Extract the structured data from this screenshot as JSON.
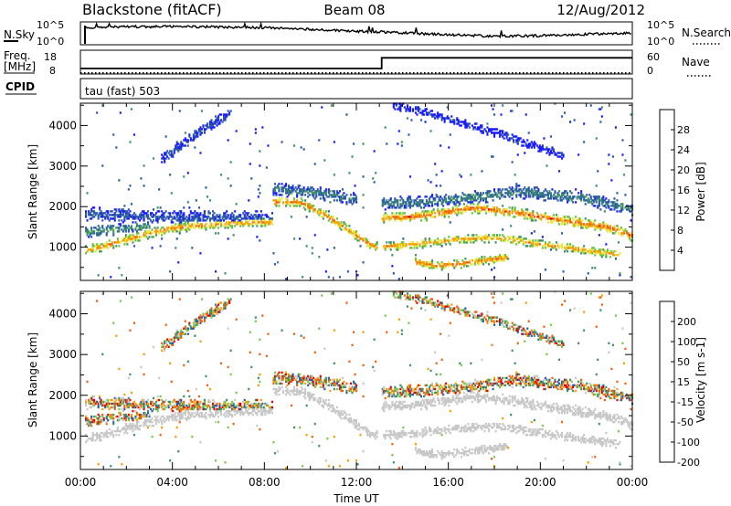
{
  "header": {
    "station": "Blackstone (fitACF)",
    "beam": "Beam 08",
    "date": "12/Aug/2012"
  },
  "sky_panel": {
    "left_label": "N.Sky",
    "right_label": "N.Search",
    "left_ticks": [
      "10^5",
      "10^0"
    ],
    "right_ticks": [
      "10^5",
      "10^0"
    ],
    "series": {
      "x": [
        0,
        0.2,
        0.8,
        2,
        4,
        6,
        8,
        10,
        12,
        13,
        14,
        16,
        18,
        20,
        22,
        24
      ],
      "y": [
        0.1,
        0.78,
        0.82,
        0.85,
        0.86,
        0.84,
        0.8,
        0.72,
        0.62,
        0.6,
        0.55,
        0.45,
        0.38,
        0.4,
        0.48,
        0.55
      ]
    }
  },
  "freq_panel": {
    "left_label_1": "Freq.",
    "left_label_2": "[MHz]",
    "right_label": "Nave",
    "left_ticks": [
      "18",
      "8"
    ],
    "right_ticks": [
      "60",
      "0"
    ],
    "freq_series": {
      "x": [
        0,
        13.1,
        13.1,
        24
      ],
      "y": [
        10.3,
        10.3,
        14.8,
        14.8
      ]
    },
    "nave_series": {
      "x": [
        0,
        24
      ],
      "y": [
        3,
        3
      ]
    }
  },
  "cpid": {
    "label": "CPID",
    "mode": "tau (fast) 503"
  },
  "chart_data": [
    {
      "type": "heatmap",
      "name": "Power",
      "xlabel": "",
      "ylabel": "Slant Range [km]",
      "xlim": [
        0,
        24
      ],
      "ylim": [
        180,
        4550
      ],
      "yticks": [
        "1000",
        "2000",
        "3000",
        "4000"
      ],
      "colorbar_label": "Power [dB]",
      "colorbar_ticks": [
        "4",
        "8",
        "12",
        "16",
        "20",
        "24",
        "28"
      ],
      "colorbar_range": [
        0,
        32
      ],
      "colors": [
        "#1a1aff",
        "#2a5aa8",
        "#3f8f6a",
        "#68c23c",
        "#e6e640",
        "#f5a000",
        "#f06010",
        "#e00000"
      ],
      "bands": [
        {
          "x": [
            0.2,
            0.8,
            2,
            3,
            4,
            6,
            7.5,
            8.3
          ],
          "y": [
            900,
            980,
            1170,
            1330,
            1450,
            1560,
            1590,
            1600
          ],
          "width": 120,
          "level": 24
        },
        {
          "x": [
            0.2,
            2,
            4,
            6,
            7.5,
            8.3
          ],
          "y": [
            1800,
            1760,
            1730,
            1700,
            1700,
            1700
          ],
          "width": 170,
          "level": 6
        },
        {
          "x": [
            0.2,
            2,
            3
          ],
          "y": [
            1350,
            1450,
            1500
          ],
          "width": 130,
          "level": 11
        },
        {
          "x": [
            8.3,
            9.5,
            10.5,
            11.5,
            12.4,
            13
          ],
          "y": [
            2100,
            2100,
            1800,
            1450,
            1100,
            950
          ],
          "width": 120,
          "level": 25
        },
        {
          "x": [
            8.3,
            10,
            12
          ],
          "y": [
            2400,
            2350,
            2150
          ],
          "width": 160,
          "level": 8
        },
        {
          "x": [
            13.1,
            14,
            15,
            16,
            17,
            18,
            19,
            20,
            21,
            22,
            23,
            24
          ],
          "y": [
            1700,
            1720,
            1760,
            1860,
            1950,
            1900,
            1820,
            1720,
            1640,
            1560,
            1460,
            1250
          ],
          "width": 130,
          "level": 26
        },
        {
          "x": [
            13.1,
            14.5,
            16,
            17,
            18,
            19,
            20,
            21,
            22,
            23.5
          ],
          "y": [
            1000,
            1050,
            1150,
            1200,
            1210,
            1150,
            1050,
            980,
            900,
            780
          ],
          "width": 110,
          "level": 23
        },
        {
          "x": [
            14.5,
            15.5,
            16.5,
            17.5,
            18.5
          ],
          "y": [
            620,
            520,
            570,
            650,
            720
          ],
          "width": 110,
          "level": 25
        },
        {
          "x": [
            13.1,
            15,
            17,
            19,
            21,
            23,
            24
          ],
          "y": [
            2050,
            2100,
            2200,
            2350,
            2250,
            2050,
            1900
          ],
          "width": 160,
          "level": 9
        },
        {
          "x": [
            3.5,
            4.5,
            5.5,
            6.5
          ],
          "y": [
            3150,
            3550,
            3950,
            4300
          ],
          "width": 130,
          "level": 5
        },
        {
          "x": [
            13.5,
            15,
            16.5,
            18,
            19.5,
            21
          ],
          "y": [
            4480,
            4300,
            4050,
            3800,
            3500,
            3250
          ],
          "width": 110,
          "level": 3
        }
      ]
    },
    {
      "type": "heatmap",
      "name": "Velocity",
      "xlabel": "Time UT",
      "ylabel": "Slant Range [km]",
      "xlim": [
        0,
        24
      ],
      "ylim": [
        180,
        4550
      ],
      "xticks": [
        "00:00",
        "04:00",
        "08:00",
        "12:00",
        "16:00",
        "20:00",
        "00:00"
      ],
      "yticks": [
        "1000",
        "2000",
        "3000",
        "4000"
      ],
      "colorbar_label": "Velocity [m s-1]",
      "colorbar_ticks": [
        "200",
        "100",
        "50",
        "15",
        "-15",
        "-50",
        "-100",
        "-200"
      ],
      "colorbar_range": [
        -240,
        240
      ],
      "colors": [
        "#e00000",
        "#f06010",
        "#f5a000",
        "#c8c8c8",
        "#7ac84a",
        "#3f8f6a",
        "#2a5aa8",
        "#1a1aff"
      ]
    }
  ],
  "colors": {
    "ground_scatter": "#c8c8c8",
    "axes": "#000000"
  }
}
